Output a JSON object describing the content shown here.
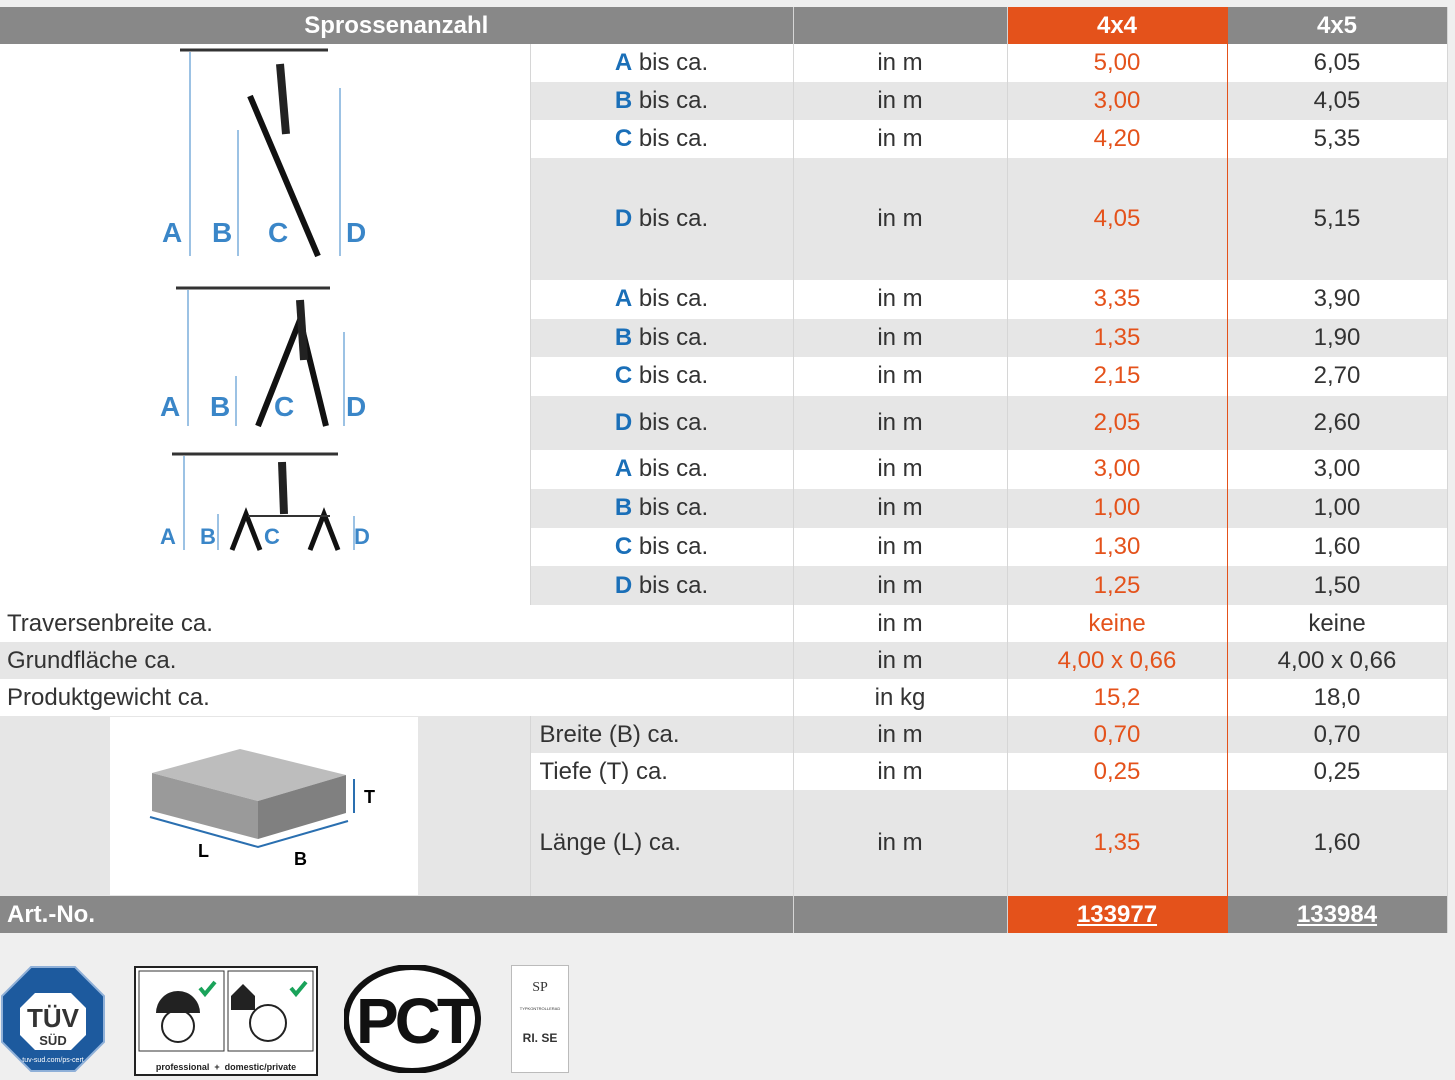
{
  "header": {
    "title": "Sprossenanzahl",
    "unit": "",
    "col1": "4x4",
    "col2": "4x5"
  },
  "colors": {
    "accent": "#e4521b",
    "header": "#888888",
    "key": "#1a6fb8"
  },
  "sections": [
    {
      "rows": [
        {
          "k": "A",
          "t": " bis ca.",
          "u": "in m",
          "v1": "5,00",
          "v2": "6,05"
        },
        {
          "k": "B",
          "t": " bis ca.",
          "u": "in m",
          "v1": "3,00",
          "v2": "4,05"
        },
        {
          "k": "C",
          "t": " bis ca.",
          "u": "in m",
          "v1": "4,20",
          "v2": "5,35"
        },
        {
          "k": "D",
          "t": " bis ca.",
          "u": "in m",
          "v1": "4,05",
          "v2": "5,15"
        }
      ]
    },
    {
      "rows": [
        {
          "k": "A",
          "t": " bis ca.",
          "u": "in m",
          "v1": "3,35",
          "v2": "3,90"
        },
        {
          "k": "B",
          "t": " bis ca.",
          "u": "in m",
          "v1": "1,35",
          "v2": "1,90"
        },
        {
          "k": "C",
          "t": " bis ca.",
          "u": "in m",
          "v1": "2,15",
          "v2": "2,70"
        },
        {
          "k": "D",
          "t": " bis ca.",
          "u": "in m",
          "v1": "2,05",
          "v2": "2,60"
        }
      ]
    },
    {
      "rows": [
        {
          "k": "A",
          "t": " bis ca.",
          "u": "in m",
          "v1": "3,00",
          "v2": "3,00"
        },
        {
          "k": "B",
          "t": " bis ca.",
          "u": "in m",
          "v1": "1,00",
          "v2": "1,00"
        },
        {
          "k": "C",
          "t": " bis ca.",
          "u": "in m",
          "v1": "1,30",
          "v2": "1,60"
        },
        {
          "k": "D",
          "t": " bis ca.",
          "u": "in m",
          "v1": "1,25",
          "v2": "1,50"
        }
      ]
    }
  ],
  "general": [
    {
      "t": "Traversenbreite ca.",
      "u": "in m",
      "v1": "keine",
      "v2": "keine"
    },
    {
      "t": "Grundfläche ca.",
      "u": "in m",
      "v1": "4,00 x 0,66",
      "v2": "4,00 x 0,66"
    },
    {
      "t": "Produktgewicht ca.",
      "u": "in kg",
      "v1": "15,2",
      "v2": "18,0"
    }
  ],
  "package": [
    {
      "t": "Breite (B) ca.",
      "u": "in m",
      "v1": "0,70",
      "v2": "0,70"
    },
    {
      "t": "Tiefe (T) ca.",
      "u": "in m",
      "v1": "0,25",
      "v2": "0,25"
    },
    {
      "t": "Länge (L) ca.",
      "u": "in m",
      "v1": "1,35",
      "v2": "1,60"
    }
  ],
  "package_labels": {
    "l": "L",
    "b": "B",
    "t": "T"
  },
  "diagram_labels": {
    "a": "A",
    "b": "B",
    "c": "C",
    "d": "D"
  },
  "art": {
    "label": "Art.-No.",
    "v1": "133977",
    "v2": "133984"
  },
  "certs": {
    "tuv": "TÜV SÜD",
    "tuv_url": "tuv-sud.com/ps-cert",
    "prof": "professional",
    "plus": "+",
    "dom": "domestic/private",
    "gost": "PCT",
    "sp": "SP",
    "sp_text": "TYPKONTROLLERAD",
    "rise": "RI. SE"
  }
}
